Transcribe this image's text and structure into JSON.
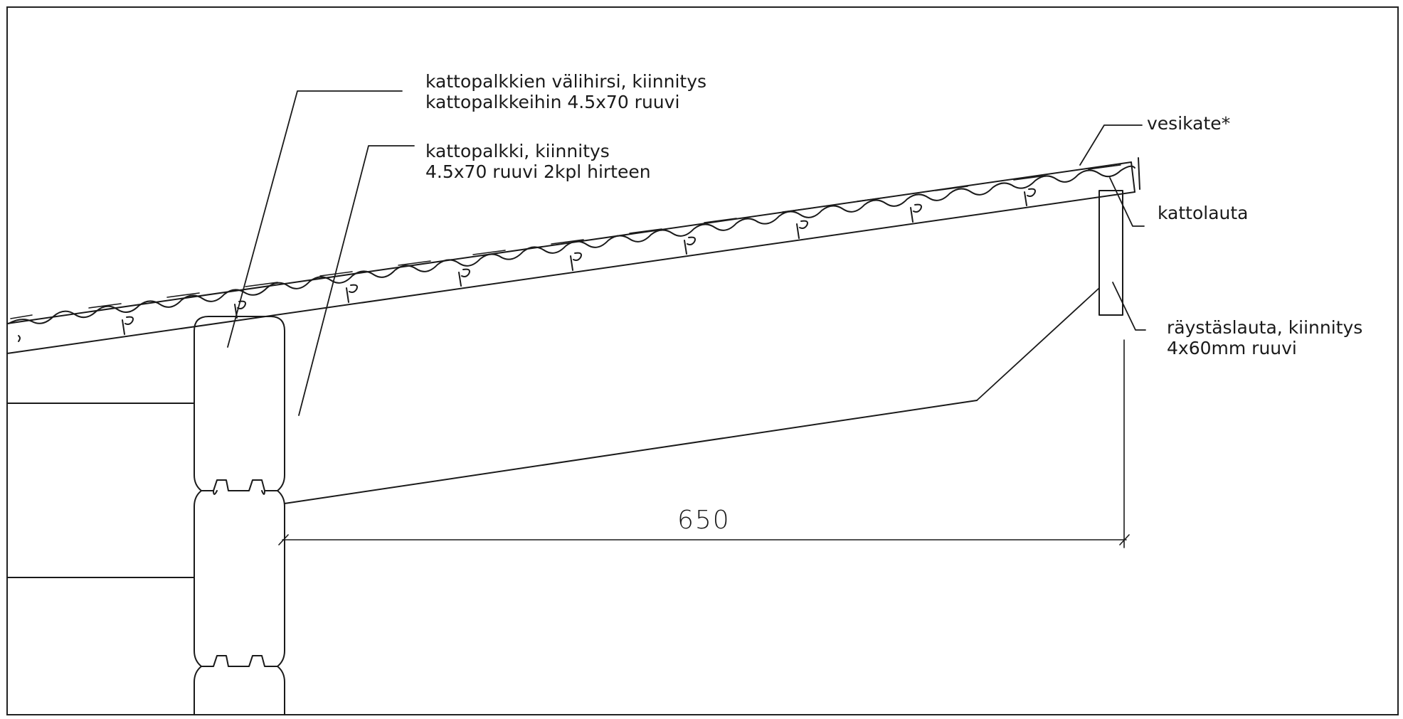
{
  "labels": {
    "beam_infill": {
      "line1": "kattopalkkien välihirsi, kiinnitys",
      "line2": "kattopalkkeihin 4.5x70 ruuvi"
    },
    "rafter": {
      "line1": "kattopalkki, kiinnitys",
      "line2": "4.5x70 ruuvi 2kpl hirteen"
    },
    "roofing": "vesikate*",
    "roof_board": "kattolauta",
    "fascia": {
      "line1": "räystäslauta, kiinnitys",
      "line2": "4x60mm ruuvi"
    }
  },
  "dimension": {
    "overhang": "650"
  }
}
